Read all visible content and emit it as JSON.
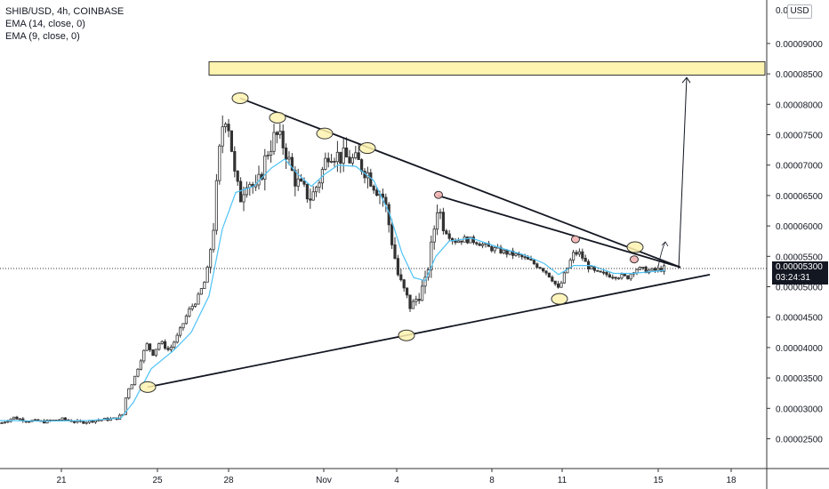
{
  "legend": {
    "symbol": "SHIB/USD, 4h, COINBASE",
    "ema1": "EMA (14, close, 0)",
    "ema2": "EMA (9, close, 0)"
  },
  "currency_button": "USD",
  "last_price": {
    "value": "0.00005300",
    "countdown": "03:24:31"
  },
  "colors": {
    "up": "#26a69a",
    "down": "#ef5350",
    "candle_body": "#333333",
    "ema": "#4fc3f7",
    "zone_fill": "#fff3b0",
    "zone_stroke": "#333333",
    "marker_fill": "#fff3b0",
    "marker_red": "#f3b3b3"
  },
  "chart_data": {
    "type": "candlestick",
    "title": "SHIB/USD, 4h, COINBASE",
    "ylim": [
      2e-05,
      9.05e-05
    ],
    "x_ticks": [
      "21",
      "25",
      "28",
      "Nov",
      "4",
      "8",
      "11",
      "15",
      "18"
    ],
    "y_ticks": [
      "0.00002500",
      "0.00003000",
      "0.00003500",
      "0.00004000",
      "0.00004500",
      "0.00005000",
      "0.00005500",
      "0.00006000",
      "0.00006500",
      "0.00007000",
      "0.00007500",
      "0.00008000",
      "0.00008500",
      "0.00009000"
    ],
    "top_tick_partial": "0.0",
    "price_path": [
      [
        0,
        2.75e-05
      ],
      [
        15,
        2.85e-05
      ],
      [
        30,
        2.8e-05
      ],
      [
        50,
        2.78e-05
      ],
      [
        70,
        2.82e-05
      ],
      [
        90,
        2.77e-05
      ],
      [
        110,
        2.81e-05
      ],
      [
        130,
        2.83e-05
      ],
      [
        138,
        2.9e-05
      ],
      [
        143,
        3.3e-05
      ],
      [
        150,
        3.45e-05
      ],
      [
        158,
        3.8e-05
      ],
      [
        165,
        4.05e-05
      ],
      [
        172,
        3.9e-05
      ],
      [
        180,
        4.1e-05
      ],
      [
        190,
        3.95e-05
      ],
      [
        200,
        4.2e-05
      ],
      [
        212,
        4.6e-05
      ],
      [
        222,
        4.8e-05
      ],
      [
        232,
        5.15e-05
      ],
      [
        240,
        6e-05
      ],
      [
        246,
        7.1e-05
      ],
      [
        252,
        7.9e-05
      ],
      [
        258,
        7.6e-05
      ],
      [
        264,
        6.8e-05
      ],
      [
        270,
        6.45e-05
      ],
      [
        278,
        6.8e-05
      ],
      [
        288,
        6.55e-05
      ],
      [
        300,
        7.2e-05
      ],
      [
        310,
        7.5e-05
      ],
      [
        320,
        7.3e-05
      ],
      [
        330,
        6.8e-05
      ],
      [
        340,
        6.6e-05
      ],
      [
        350,
        6.45e-05
      ],
      [
        360,
        6.8e-05
      ],
      [
        370,
        7.25e-05
      ],
      [
        380,
        7.15e-05
      ],
      [
        392,
        7.1e-05
      ],
      [
        402,
        7.05e-05
      ],
      [
        412,
        6.9e-05
      ],
      [
        422,
        6.65e-05
      ],
      [
        432,
        6.45e-05
      ],
      [
        440,
        5.8e-05
      ],
      [
        448,
        5.15e-05
      ],
      [
        455,
        4.9e-05
      ],
      [
        462,
        4.65e-05
      ],
      [
        470,
        4.85e-05
      ],
      [
        478,
        5.05e-05
      ],
      [
        485,
        5.65e-05
      ],
      [
        492,
        6.35e-05
      ],
      [
        500,
        5.95e-05
      ],
      [
        510,
        5.75e-05
      ],
      [
        522,
        5.78e-05
      ],
      [
        535,
        5.75e-05
      ],
      [
        548,
        5.65e-05
      ],
      [
        560,
        5.6e-05
      ],
      [
        572,
        5.55e-05
      ],
      [
        585,
        5.5e-05
      ],
      [
        598,
        5.4e-05
      ],
      [
        610,
        5.3e-05
      ],
      [
        620,
        5.15e-05
      ],
      [
        628,
        4.95e-05
      ],
      [
        636,
        5.25e-05
      ],
      [
        645,
        5.55e-05
      ],
      [
        652,
        5.55e-05
      ],
      [
        660,
        5.35e-05
      ],
      [
        670,
        5.22e-05
      ],
      [
        682,
        5.2e-05
      ],
      [
        695,
        5.18e-05
      ],
      [
        705,
        5.15e-05
      ],
      [
        714,
        5.3e-05
      ],
      [
        722,
        5.28e-05
      ],
      [
        732,
        5.26e-05
      ],
      [
        740,
        5.28e-05
      ],
      [
        748,
        5.31e-05
      ]
    ],
    "ema_path": [
      [
        0,
        2.8e-05
      ],
      [
        50,
        2.79e-05
      ],
      [
        100,
        2.8e-05
      ],
      [
        136,
        2.84e-05
      ],
      [
        150,
        3.1e-05
      ],
      [
        170,
        3.65e-05
      ],
      [
        195,
        3.95e-05
      ],
      [
        215,
        4.25e-05
      ],
      [
        235,
        4.85e-05
      ],
      [
        250,
        5.95e-05
      ],
      [
        265,
        6.55e-05
      ],
      [
        285,
        6.65e-05
      ],
      [
        305,
        6.95e-05
      ],
      [
        320,
        7.1e-05
      ],
      [
        335,
        6.85e-05
      ],
      [
        350,
        6.65e-05
      ],
      [
        365,
        6.85e-05
      ],
      [
        380,
        7e-05
      ],
      [
        400,
        6.98e-05
      ],
      [
        420,
        6.75e-05
      ],
      [
        438,
        6.2e-05
      ],
      [
        452,
        5.55e-05
      ],
      [
        465,
        5.15e-05
      ],
      [
        478,
        5.1e-05
      ],
      [
        490,
        5.5e-05
      ],
      [
        505,
        5.75e-05
      ],
      [
        530,
        5.8e-05
      ],
      [
        560,
        5.65e-05
      ],
      [
        590,
        5.52e-05
      ],
      [
        612,
        5.38e-05
      ],
      [
        628,
        5.2e-05
      ],
      [
        645,
        5.35e-05
      ],
      [
        665,
        5.35e-05
      ],
      [
        690,
        5.22e-05
      ],
      [
        712,
        5.22e-05
      ],
      [
        748,
        5.27e-05
      ]
    ],
    "resistance_zone": {
      "low": 8.48e-05,
      "high": 8.7e-05
    },
    "annotations": {
      "trend_lines": [
        {
          "from": [
            166,
            3.35e-05
          ],
          "to": [
            798,
            5.2e-05
          ]
        },
        {
          "from": [
            270,
            8.1e-05
          ],
          "to": [
            765,
            5.32e-05
          ]
        },
        {
          "from": [
            492,
            6.5e-05
          ],
          "to": [
            765,
            5.32e-05
          ]
        }
      ],
      "arrow_target": 8.44e-05,
      "touch_points": [
        {
          "x": 166,
          "y": 3.35e-05
        },
        {
          "x": 270,
          "y": 8.1e-05
        },
        {
          "x": 312,
          "y": 7.78e-05
        },
        {
          "x": 365,
          "y": 7.52e-05
        },
        {
          "x": 413,
          "y": 7.28e-05
        },
        {
          "x": 457,
          "y": 4.2e-05
        },
        {
          "x": 629,
          "y": 4.8e-05
        },
        {
          "x": 714,
          "y": 5.65e-05
        }
      ],
      "red_points": [
        {
          "x": 493,
          "y": 6.51e-05
        },
        {
          "x": 647,
          "y": 5.78e-05
        },
        {
          "x": 713,
          "y": 5.45e-05
        }
      ]
    }
  }
}
